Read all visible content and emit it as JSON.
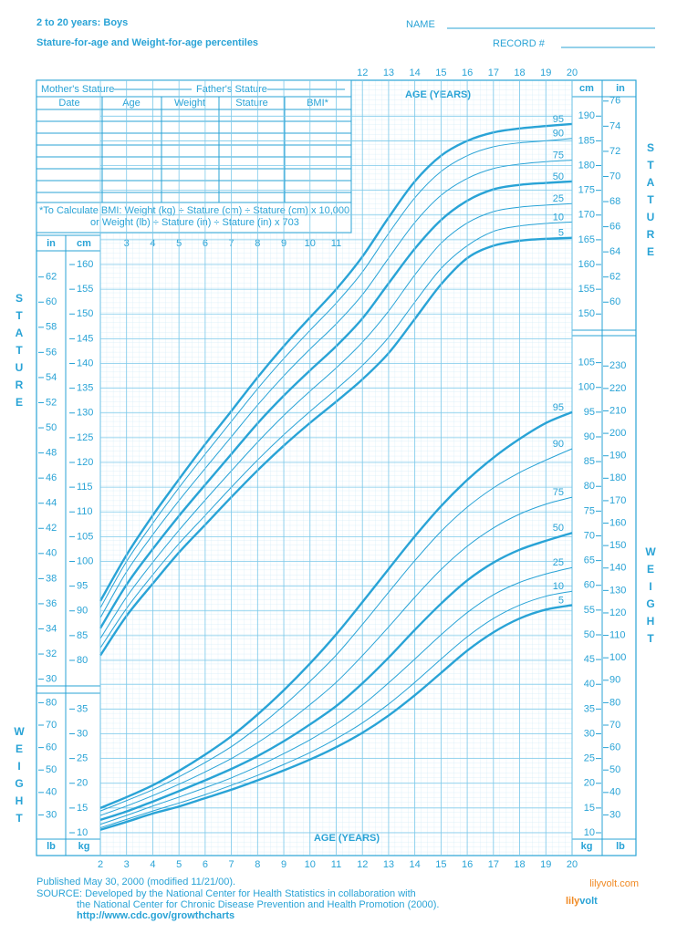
{
  "header": {
    "title": "2 to 20 years: Boys",
    "subtitle": "Stature-for-age and Weight-for-age percentiles",
    "name_label": "NAME",
    "record_label": "RECORD #"
  },
  "record_table": {
    "mother": "Mother's Stature",
    "father": "Father's Stature",
    "columns": [
      "Date",
      "Age",
      "Weight",
      "Stature",
      "BMI*"
    ],
    "note": [
      "*To Calculate BMI: Weight (kg) ÷ Stature (cm) ÷ Stature (cm) x 10,000",
      "or Weight (lb) ÷ Stature (in) ÷ Stature (in) x 703"
    ]
  },
  "chart_data": [
    {
      "type": "line",
      "x_label": "AGE (YEARS)",
      "y_label": "STATURE",
      "y_unit": "cm",
      "y2_unit": "in",
      "x": [
        2,
        3,
        4,
        5,
        6,
        7,
        8,
        9,
        10,
        11,
        12,
        13,
        14,
        15,
        16,
        17,
        18,
        19,
        20
      ],
      "xlim": [
        2,
        20
      ],
      "xticks": [
        2,
        3,
        4,
        5,
        6,
        7,
        8,
        9,
        10,
        11,
        12,
        13,
        14,
        15,
        16,
        17,
        18,
        19,
        20
      ],
      "ylim": [
        76.2,
        193.04
      ],
      "yticks": [
        80,
        85,
        90,
        95,
        100,
        105,
        110,
        115,
        120,
        125,
        130,
        135,
        140,
        145,
        150,
        155,
        160,
        165,
        170,
        175,
        180,
        185,
        190
      ],
      "y2lim": [
        30,
        76
      ],
      "y2ticks": [
        30,
        32,
        34,
        36,
        38,
        40,
        42,
        44,
        46,
        48,
        50,
        52,
        54,
        56,
        58,
        60,
        62,
        64,
        66,
        68,
        70,
        72,
        74,
        76
      ],
      "grid": true,
      "color": "#29a3d6",
      "series": [
        {
          "name": "5",
          "color": "#29a3d6",
          "values": [
            81.0,
            89.0,
            95.5,
            101.8,
            107.4,
            113.0,
            118.4,
            123.4,
            128.0,
            132.3,
            136.8,
            142.1,
            149.0,
            156.0,
            161.3,
            163.8,
            164.8,
            165.2,
            165.4
          ]
        },
        {
          "name": "10",
          "color": "#29a3d6",
          "values": [
            82.5,
            90.5,
            97.3,
            103.6,
            109.3,
            115.0,
            120.5,
            125.6,
            130.3,
            134.8,
            139.6,
            145.3,
            152.4,
            159.2,
            163.8,
            166.7,
            167.8,
            168.3,
            168.6
          ]
        },
        {
          "name": "25",
          "color": "#29a3d6",
          "values": [
            84.4,
            92.8,
            99.8,
            106.3,
            112.4,
            118.3,
            124.1,
            129.5,
            134.4,
            139.1,
            144.3,
            150.6,
            157.9,
            164.3,
            168.4,
            170.7,
            171.6,
            172.0,
            172.3
          ]
        },
        {
          "name": "50",
          "color": "#29a3d6",
          "values": [
            86.5,
            95.3,
            102.5,
            109.2,
            115.5,
            121.7,
            127.9,
            133.5,
            138.6,
            143.5,
            149.1,
            156.2,
            163.2,
            169.0,
            172.9,
            175.2,
            176.1,
            176.5,
            176.8
          ]
        },
        {
          "name": "75",
          "color": "#29a3d6",
          "values": [
            88.6,
            97.9,
            105.4,
            112.3,
            118.8,
            125.2,
            131.6,
            137.5,
            142.9,
            148.0,
            153.9,
            161.3,
            168.5,
            174.0,
            177.4,
            179.4,
            180.3,
            180.8,
            181.1
          ]
        },
        {
          "name": "90",
          "color": "#29a3d6",
          "values": [
            90.6,
            100.0,
            107.7,
            114.9,
            121.7,
            128.3,
            134.9,
            141.0,
            146.7,
            152.2,
            158.5,
            166.3,
            173.5,
            178.8,
            182.0,
            183.8,
            184.6,
            185.0,
            185.5
          ]
        },
        {
          "name": "95",
          "color": "#29a3d6",
          "values": [
            92.0,
            101.3,
            109.3,
            116.6,
            123.7,
            130.4,
            137.2,
            143.5,
            149.3,
            155.0,
            161.6,
            169.5,
            176.8,
            182.0,
            185.0,
            186.7,
            187.5,
            188.0,
            188.4
          ]
        }
      ]
    },
    {
      "type": "line",
      "x_label": "AGE (YEARS)",
      "y_label": "WEIGHT",
      "y_unit": "kg",
      "y2_unit": "lb",
      "x": [
        2,
        3,
        4,
        5,
        6,
        7,
        8,
        9,
        10,
        11,
        12,
        13,
        14,
        15,
        16,
        17,
        18,
        19,
        20
      ],
      "xlim": [
        2,
        20
      ],
      "xticks": [
        2,
        3,
        4,
        5,
        6,
        7,
        8,
        9,
        10,
        11,
        12,
        13,
        14,
        15,
        16,
        17,
        18,
        19,
        20
      ],
      "ylim": [
        10,
        105
      ],
      "yticks": [
        10,
        15,
        20,
        25,
        30,
        35,
        40,
        45,
        50,
        55,
        60,
        65,
        70,
        75,
        80,
        85,
        90,
        95,
        100,
        105
      ],
      "y2lim": [
        22.05,
        231.49
      ],
      "y2ticks": [
        30,
        40,
        50,
        60,
        70,
        80,
        90,
        100,
        110,
        120,
        130,
        140,
        150,
        160,
        170,
        180,
        190,
        200,
        210,
        220,
        230
      ],
      "grid": true,
      "color": "#29a3d6",
      "series": [
        {
          "name": "5",
          "color": "#29a3d6",
          "values": [
            10.6,
            12.2,
            13.9,
            15.3,
            17.0,
            18.7,
            20.6,
            22.6,
            24.8,
            27.3,
            30.2,
            33.7,
            37.8,
            42.3,
            46.8,
            50.5,
            53.3,
            55.1,
            56.0
          ]
        },
        {
          "name": "10",
          "color": "#29a3d6",
          "values": [
            11.0,
            12.7,
            14.4,
            16.0,
            17.7,
            19.6,
            21.6,
            23.8,
            26.2,
            29.0,
            32.2,
            36.0,
            40.4,
            45.1,
            49.6,
            53.3,
            56.0,
            57.8,
            58.8
          ]
        },
        {
          "name": "25",
          "color": "#29a3d6",
          "values": [
            11.7,
            13.5,
            15.4,
            17.2,
            19.1,
            21.1,
            23.4,
            26.0,
            28.8,
            32.0,
            35.8,
            40.3,
            45.1,
            50.0,
            54.5,
            58.1,
            60.6,
            62.3,
            63.6
          ]
        },
        {
          "name": "50",
          "color": "#29a3d6",
          "values": [
            12.6,
            14.3,
            16.3,
            18.4,
            20.6,
            22.9,
            25.5,
            28.5,
            31.9,
            35.6,
            40.2,
            45.4,
            51.0,
            56.3,
            61.0,
            64.6,
            67.2,
            69.0,
            70.6
          ]
        },
        {
          "name": "75",
          "color": "#29a3d6",
          "values": [
            13.5,
            15.4,
            17.5,
            19.8,
            22.3,
            25.0,
            28.2,
            31.8,
            35.9,
            40.4,
            45.8,
            51.6,
            57.6,
            63.2,
            67.9,
            71.6,
            74.4,
            76.4,
            77.8
          ]
        },
        {
          "name": "90",
          "color": "#29a3d6",
          "values": [
            14.4,
            16.5,
            18.7,
            21.3,
            24.2,
            27.4,
            31.3,
            35.7,
            40.6,
            45.9,
            52.1,
            58.6,
            65.0,
            70.9,
            75.8,
            79.7,
            82.8,
            85.3,
            87.6
          ]
        },
        {
          "name": "95",
          "color": "#29a3d6",
          "values": [
            15.0,
            17.2,
            19.6,
            22.5,
            25.8,
            29.5,
            33.9,
            38.8,
            44.2,
            50.1,
            56.6,
            63.3,
            69.9,
            76.0,
            81.3,
            85.8,
            89.6,
            92.8,
            95.0
          ]
        }
      ]
    }
  ],
  "footer": {
    "lines": [
      "Published May 30, 2000 (modified 11/21/00).",
      "SOURCE: Developed by the National Center for Health Statistics in collaboration with",
      "the National Center for Chronic Disease Prevention and Health Promotion (2000).",
      "http://www.cdc.gov/growthcharts"
    ],
    "logo": "lilyvolt",
    "logo_site": "lilyvolt.com"
  }
}
